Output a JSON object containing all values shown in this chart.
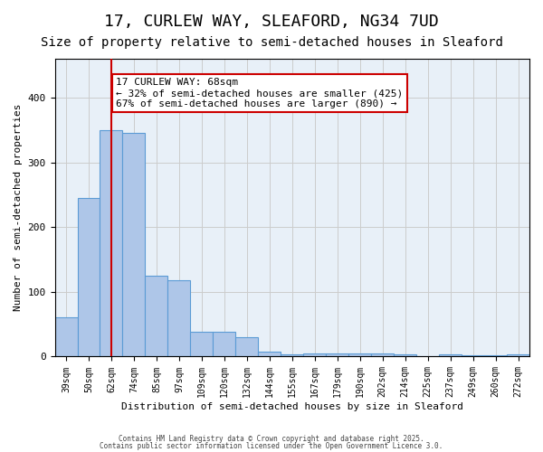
{
  "title": "17, CURLEW WAY, SLEAFORD, NG34 7UD",
  "subtitle": "Size of property relative to semi-detached houses in Sleaford",
  "xlabel": "Distribution of semi-detached houses by size in Sleaford",
  "ylabel": "Number of semi-detached properties",
  "bar_color": "#aec6e8",
  "bar_edge_color": "#5b9bd5",
  "grid_color": "#cccccc",
  "ax_facecolor": "#e8f0f8",
  "categories": [
    "39sqm",
    "50sqm",
    "62sqm",
    "74sqm",
    "85sqm",
    "97sqm",
    "109sqm",
    "120sqm",
    "132sqm",
    "144sqm",
    "155sqm",
    "167sqm",
    "179sqm",
    "190sqm",
    "202sqm",
    "214sqm",
    "225sqm",
    "237sqm",
    "249sqm",
    "260sqm",
    "272sqm"
  ],
  "values": [
    60,
    245,
    350,
    345,
    125,
    118,
    38,
    38,
    30,
    8,
    3,
    5,
    5,
    5,
    5,
    3,
    0,
    3,
    2,
    2,
    3
  ],
  "ylim": [
    0,
    460
  ],
  "property_line_x": 2,
  "property_line_color": "#cc0000",
  "annotation_text": "17 CURLEW WAY: 68sqm\n← 32% of semi-detached houses are smaller (425)\n67% of semi-detached houses are larger (890) →",
  "annotation_box_color": "#ffffff",
  "annotation_box_edge_color": "#cc0000",
  "annotation_fontsize": 8,
  "title_fontsize": 13,
  "subtitle_fontsize": 10,
  "footer_line1": "Contains HM Land Registry data © Crown copyright and database right 2025.",
  "footer_line2": "Contains public sector information licensed under the Open Government Licence 3.0."
}
